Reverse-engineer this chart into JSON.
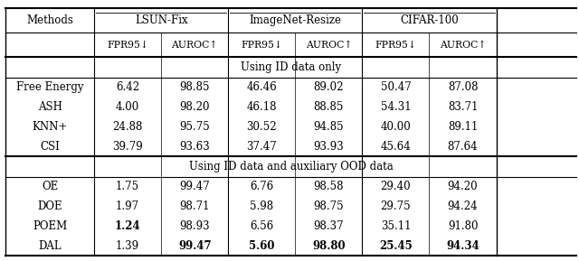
{
  "col_groups": [
    "LSUN-Fix",
    "ImageNet-Resize",
    "CIFAR-100"
  ],
  "sub_cols": [
    "FPR95↓",
    "AUROC↑"
  ],
  "methods_col": "Methods",
  "section1_label": "Using ID data only",
  "section2_label": "Using ID data and auxiliary OOD data",
  "section1_rows": [
    {
      "method": "Free Energy",
      "vals": [
        "6.42",
        "98.85",
        "46.46",
        "89.02",
        "50.47",
        "87.08"
      ],
      "bold": [
        false,
        false,
        false,
        false,
        false,
        false
      ]
    },
    {
      "method": "ASH",
      "vals": [
        "4.00",
        "98.20",
        "46.18",
        "88.85",
        "54.31",
        "83.71"
      ],
      "bold": [
        false,
        false,
        false,
        false,
        false,
        false
      ]
    },
    {
      "method": "KNN+",
      "vals": [
        "24.88",
        "95.75",
        "30.52",
        "94.85",
        "40.00",
        "89.11"
      ],
      "bold": [
        false,
        false,
        false,
        false,
        false,
        false
      ]
    },
    {
      "method": "CSI",
      "vals": [
        "39.79",
        "93.63",
        "37.47",
        "93.93",
        "45.64",
        "87.64"
      ],
      "bold": [
        false,
        false,
        false,
        false,
        false,
        false
      ]
    }
  ],
  "section2_rows": [
    {
      "method": "OE",
      "vals": [
        "1.75",
        "99.47",
        "6.76",
        "98.58",
        "29.40",
        "94.20"
      ],
      "bold": [
        false,
        false,
        false,
        false,
        false,
        false
      ]
    },
    {
      "method": "DOE",
      "vals": [
        "1.97",
        "98.71",
        "5.98",
        "98.75",
        "29.75",
        "94.24"
      ],
      "bold": [
        false,
        false,
        false,
        false,
        false,
        false
      ]
    },
    {
      "method": "POEM",
      "vals": [
        "1.24",
        "98.93",
        "6.56",
        "98.37",
        "35.11",
        "91.80"
      ],
      "bold": [
        true,
        false,
        false,
        false,
        false,
        false
      ]
    },
    {
      "method": "DAL",
      "vals": [
        "1.39",
        "99.47",
        "5.60",
        "98.80",
        "25.45",
        "94.34"
      ],
      "bold": [
        false,
        true,
        true,
        true,
        true,
        true
      ]
    }
  ],
  "bg_color": "#ffffff",
  "text_color": "#000000",
  "line_color": "#000000"
}
